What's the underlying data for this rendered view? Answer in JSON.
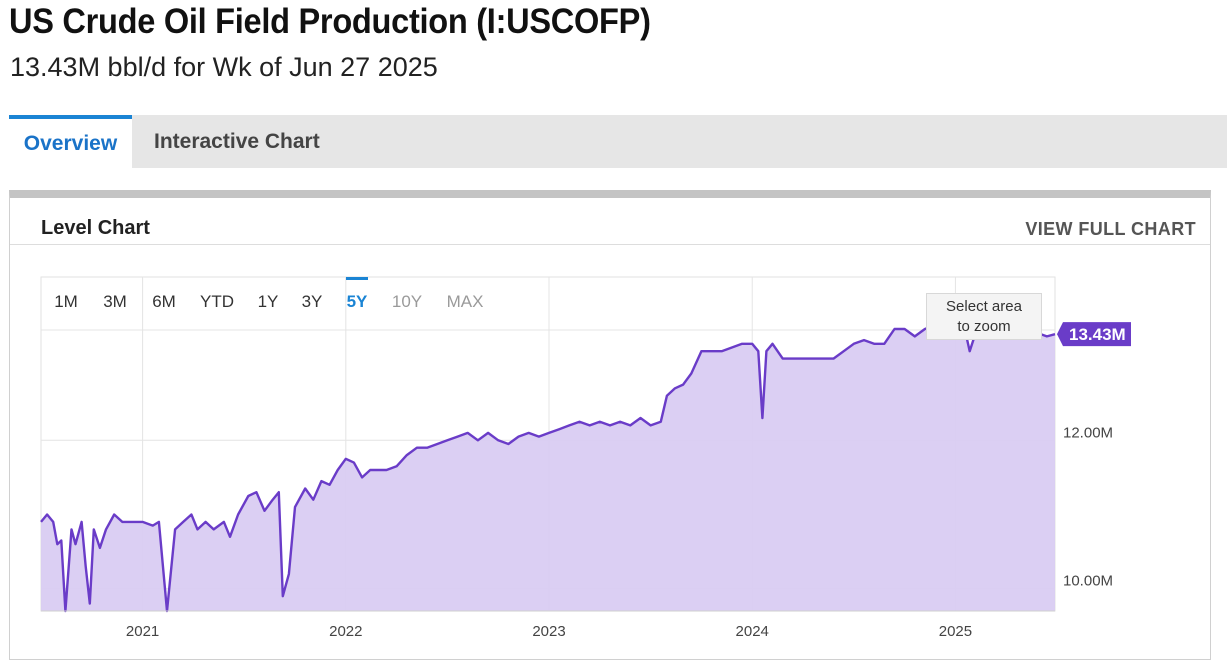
{
  "header": {
    "title": "US Crude Oil Field Production (I:USCOFP)",
    "subtitle": "13.43M bbl/d for Wk of Jun 27 2025"
  },
  "tabs": [
    {
      "label": "Overview",
      "active": true
    },
    {
      "label": "Interactive Chart",
      "active": false
    }
  ],
  "panel": {
    "title": "Level Chart",
    "view_full_label": "VIEW FULL CHART"
  },
  "range_buttons": [
    {
      "label": "1M",
      "state": "normal"
    },
    {
      "label": "3M",
      "state": "normal"
    },
    {
      "label": "6M",
      "state": "normal"
    },
    {
      "label": "YTD",
      "state": "normal"
    },
    {
      "label": "1Y",
      "state": "normal"
    },
    {
      "label": "3Y",
      "state": "normal"
    },
    {
      "label": "5Y",
      "state": "active"
    },
    {
      "label": "10Y",
      "state": "disabled"
    },
    {
      "label": "MAX",
      "state": "disabled"
    }
  ],
  "tooltip": {
    "line1": "Select area",
    "line2": "to zoom"
  },
  "colors": {
    "line": "#6a3cc8",
    "area": "#d9ccf2",
    "accent": "#1a84d4",
    "grid": "#e4e4e4"
  },
  "chart_data": {
    "type": "area",
    "series": [
      {
        "values": [
          [
            2020.5,
            10.9
          ],
          [
            2020.53,
            11.0
          ],
          [
            2020.56,
            10.9
          ],
          [
            2020.58,
            10.6
          ],
          [
            2020.6,
            10.65
          ],
          [
            2020.62,
            9.7
          ],
          [
            2020.65,
            10.8
          ],
          [
            2020.67,
            10.6
          ],
          [
            2020.7,
            10.9
          ],
          [
            2020.72,
            10.3
          ],
          [
            2020.74,
            9.8
          ],
          [
            2020.76,
            10.8
          ],
          [
            2020.79,
            10.55
          ],
          [
            2020.82,
            10.8
          ],
          [
            2020.86,
            11.0
          ],
          [
            2020.9,
            10.9
          ],
          [
            2020.94,
            10.9
          ],
          [
            2021.0,
            10.9
          ],
          [
            2021.05,
            10.85
          ],
          [
            2021.08,
            10.9
          ],
          [
            2021.12,
            9.7
          ],
          [
            2021.16,
            10.8
          ],
          [
            2021.2,
            10.9
          ],
          [
            2021.24,
            11.0
          ],
          [
            2021.27,
            10.8
          ],
          [
            2021.31,
            10.9
          ],
          [
            2021.35,
            10.8
          ],
          [
            2021.4,
            10.9
          ],
          [
            2021.43,
            10.7
          ],
          [
            2021.47,
            11.0
          ],
          [
            2021.52,
            11.25
          ],
          [
            2021.56,
            11.3
          ],
          [
            2021.6,
            11.05
          ],
          [
            2021.64,
            11.2
          ],
          [
            2021.67,
            11.3
          ],
          [
            2021.69,
            9.9
          ],
          [
            2021.72,
            10.2
          ],
          [
            2021.75,
            11.1
          ],
          [
            2021.8,
            11.35
          ],
          [
            2021.84,
            11.2
          ],
          [
            2021.88,
            11.45
          ],
          [
            2021.92,
            11.4
          ],
          [
            2021.96,
            11.6
          ],
          [
            2022.0,
            11.75
          ],
          [
            2022.04,
            11.7
          ],
          [
            2022.08,
            11.5
          ],
          [
            2022.12,
            11.6
          ],
          [
            2022.2,
            11.6
          ],
          [
            2022.25,
            11.65
          ],
          [
            2022.3,
            11.8
          ],
          [
            2022.35,
            11.9
          ],
          [
            2022.4,
            11.9
          ],
          [
            2022.45,
            11.95
          ],
          [
            2022.5,
            12.0
          ],
          [
            2022.55,
            12.05
          ],
          [
            2022.6,
            12.1
          ],
          [
            2022.65,
            12.0
          ],
          [
            2022.7,
            12.1
          ],
          [
            2022.75,
            12.0
          ],
          [
            2022.8,
            11.95
          ],
          [
            2022.85,
            12.05
          ],
          [
            2022.9,
            12.1
          ],
          [
            2022.95,
            12.05
          ],
          [
            2023.0,
            12.1
          ],
          [
            2023.05,
            12.15
          ],
          [
            2023.1,
            12.2
          ],
          [
            2023.15,
            12.25
          ],
          [
            2023.2,
            12.2
          ],
          [
            2023.25,
            12.25
          ],
          [
            2023.3,
            12.2
          ],
          [
            2023.35,
            12.25
          ],
          [
            2023.4,
            12.2
          ],
          [
            2023.45,
            12.3
          ],
          [
            2023.5,
            12.2
          ],
          [
            2023.55,
            12.25
          ],
          [
            2023.58,
            12.6
          ],
          [
            2023.62,
            12.7
          ],
          [
            2023.66,
            12.75
          ],
          [
            2023.7,
            12.9
          ],
          [
            2023.75,
            13.2
          ],
          [
            2023.8,
            13.2
          ],
          [
            2023.85,
            13.2
          ],
          [
            2023.9,
            13.25
          ],
          [
            2023.95,
            13.3
          ],
          [
            2024.0,
            13.3
          ],
          [
            2024.03,
            13.2
          ],
          [
            2024.05,
            12.3
          ],
          [
            2024.07,
            13.2
          ],
          [
            2024.1,
            13.3
          ],
          [
            2024.15,
            13.1
          ],
          [
            2024.2,
            13.1
          ],
          [
            2024.3,
            13.1
          ],
          [
            2024.4,
            13.1
          ],
          [
            2024.45,
            13.2
          ],
          [
            2024.5,
            13.3
          ],
          [
            2024.55,
            13.35
          ],
          [
            2024.6,
            13.3
          ],
          [
            2024.65,
            13.3
          ],
          [
            2024.7,
            13.5
          ],
          [
            2024.75,
            13.5
          ],
          [
            2024.8,
            13.4
          ],
          [
            2024.85,
            13.5
          ],
          [
            2024.9,
            13.55
          ],
          [
            2024.95,
            13.6
          ],
          [
            2025.0,
            13.5
          ],
          [
            2025.05,
            13.45
          ],
          [
            2025.07,
            13.2
          ],
          [
            2025.1,
            13.45
          ],
          [
            2025.15,
            13.5
          ],
          [
            2025.2,
            13.55
          ],
          [
            2025.25,
            13.5
          ],
          [
            2025.3,
            13.45
          ],
          [
            2025.35,
            13.4
          ],
          [
            2025.4,
            13.45
          ],
          [
            2025.45,
            13.4
          ],
          [
            2025.49,
            13.43
          ]
        ]
      }
    ],
    "x_ticks": [
      "2021",
      "2022",
      "2023",
      "2024",
      "2025"
    ],
    "x_tick_values": [
      2021.0,
      2022.0,
      2023.0,
      2024.0,
      2025.0
    ],
    "y_ticks": [
      "10.00M",
      "12.00M"
    ],
    "y_tick_values": [
      10.0,
      12.0
    ],
    "xlim": [
      2020.5,
      2025.49
    ],
    "ylim": [
      9.7,
      14.2
    ],
    "last_value_label": "13.43M",
    "grid": true,
    "legend": "none"
  }
}
